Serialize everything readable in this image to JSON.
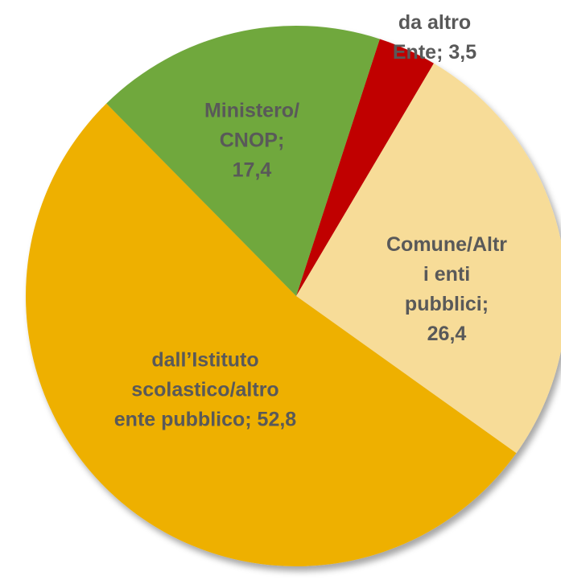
{
  "chart_data": {
    "type": "pie",
    "categories": [
      "da altro Ente",
      "Comune/Altri enti pubblici",
      "dall’Istituto scolastico/altro ente pubblico",
      "Ministero/CNOP"
    ],
    "values": [
      3.5,
      26.4,
      52.8,
      17.4
    ],
    "value_labels": [
      "3,5",
      "26,4",
      "52,8",
      "17,4"
    ],
    "label_separator": "; ",
    "colors": [
      "#c00000",
      "#f7dc98",
      "#eeb000",
      "#70a83c"
    ]
  }
}
